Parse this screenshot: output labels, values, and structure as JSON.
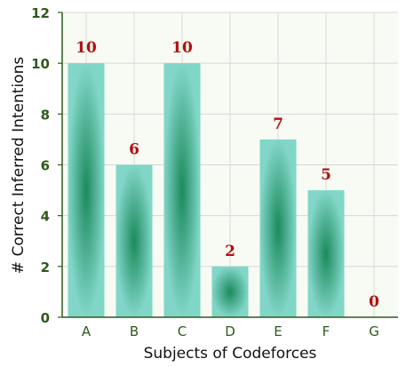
{
  "chart_data": {
    "type": "bar",
    "categories": [
      "A",
      "B",
      "C",
      "D",
      "E",
      "F",
      "G"
    ],
    "values": [
      10,
      6,
      10,
      2,
      7,
      5,
      0
    ],
    "data_labels": [
      "10",
      "6",
      "10",
      "2",
      "7",
      "5",
      "0"
    ],
    "xlabel": "Subjects of Codeforces",
    "ylabel": "# Correct Inferred Intentions",
    "ylim": [
      0,
      12
    ],
    "yticks": [
      "0",
      "2",
      "4",
      "6",
      "8",
      "10",
      "12"
    ],
    "grid": true,
    "colors": {
      "bar_edge": "#82d6c8",
      "bar_center": "#1a8a5c",
      "label": "#b01010",
      "axis": "#2e5a1c",
      "grid": "#d8d8d8",
      "plot_bg": "#f7fbf4"
    }
  }
}
